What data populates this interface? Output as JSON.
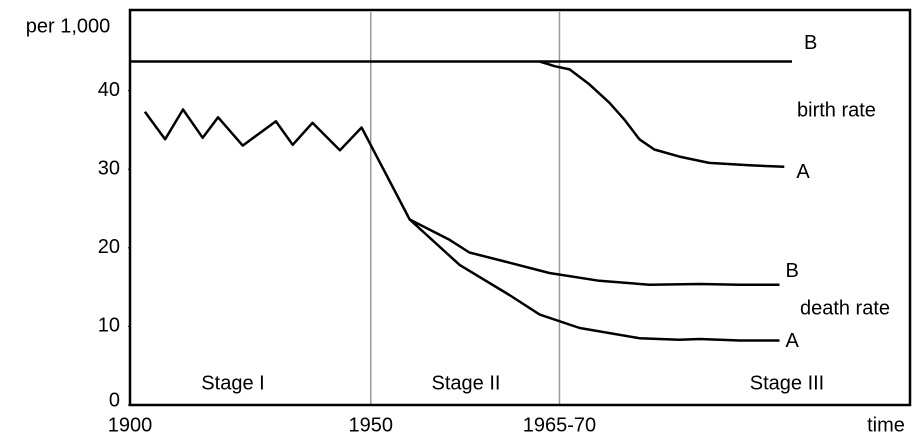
{
  "chart_data": {
    "type": "line",
    "ylabel": "per 1,000",
    "xlabel": "time",
    "xlim": [
      1900,
      2062
    ],
    "ylim": [
      0,
      50
    ],
    "xticks": [
      1900,
      1950,
      {
        "value": 1989.2,
        "label": "1965-70"
      }
    ],
    "yticks": [
      0,
      10,
      20,
      30,
      40
    ],
    "annotations": [
      "birth rate",
      "death rate",
      "Stage I",
      "Stage II",
      "Stage III"
    ],
    "series": [
      {
        "name": "B",
        "color": "#000000",
        "x": [
          1900,
          2037.5
        ],
        "values": [
          43.7,
          43.7
        ]
      },
      {
        "name": "A",
        "color": "#000000",
        "x": [
          1985.1,
          1988.2,
          1991.3,
          1995.4,
          1999.5,
          2002.7,
          2005.8,
          2008.9,
          2014.1,
          2020.3,
          2028.6,
          2035.9
        ],
        "values": [
          43.7,
          43.1,
          42.7,
          40.8,
          38.5,
          36.3,
          33.8,
          32.5,
          31.6,
          30.8,
          30.5,
          30.3
        ]
      },
      {
        "name": "B",
        "color": "#000000",
        "x": [
          1903.1,
          1907.3,
          1911.0,
          1915.1,
          1918.3,
          1923.4,
          1930.3,
          1933.8,
          1937.9,
          1943.6,
          1948.1,
          1958.1,
          1966.4,
          1970.5,
          1978.8,
          1987.1,
          1997.5,
          2007.9,
          2018.3,
          2026.6,
          2034.9
        ],
        "values": [
          37.3,
          33.8,
          37.6,
          34.0,
          36.6,
          33.0,
          36.1,
          33.1,
          35.9,
          32.4,
          35.3,
          23.6,
          21.0,
          19.4,
          18.1,
          16.8,
          15.8,
          15.3,
          15.4,
          15.3,
          15.3
        ]
      },
      {
        "name": "A",
        "color": "#000000",
        "x": [
          1958.1,
          1968.5,
          1978.8,
          1985.1,
          1993.4,
          2005.8,
          2014.1,
          2018.3,
          2026.6,
          2034.9
        ],
        "values": [
          23.6,
          17.8,
          14.0,
          11.5,
          9.8,
          8.5,
          8.3,
          8.4,
          8.2,
          8.2
        ]
      }
    ]
  }
}
